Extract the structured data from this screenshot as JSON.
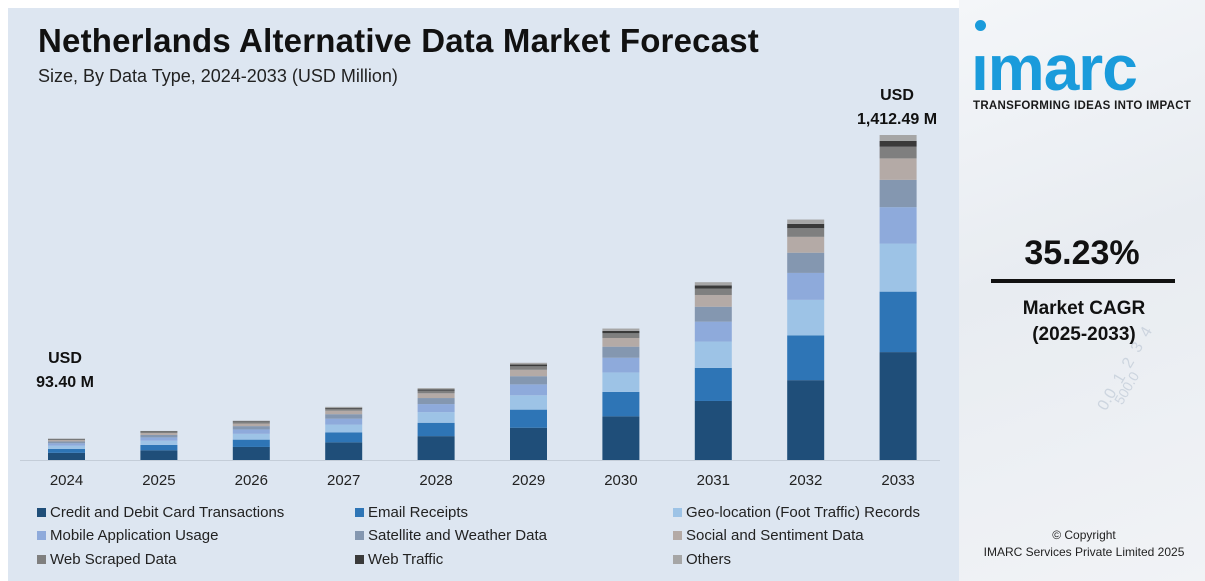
{
  "header": {
    "title": "Netherlands Alternative Data Market Forecast",
    "subtitle": "Size, By Data Type, 2024-2033 (USD Million)"
  },
  "annotations": {
    "start_line1": "USD",
    "start_line2": "93.40 M",
    "end_line1": "USD",
    "end_line2": "1,412.49 M"
  },
  "side": {
    "logo_text": "ımarc",
    "tagline": "TRANSFORMING IDEAS INTO IMPACT",
    "cagr_value": "35.23%",
    "cagr_label_line1": "Market CAGR",
    "cagr_label_line2": "(2025-2033)",
    "copyright_line1": "© Copyright",
    "copyright_line2": "IMARC Services Private Limited 2025",
    "brand_color": "#1a9bdb"
  },
  "chart_data": {
    "type": "bar",
    "stacked": true,
    "categories": [
      "2024",
      "2025",
      "2026",
      "2027",
      "2028",
      "2029",
      "2030",
      "2031",
      "2032",
      "2033"
    ],
    "totals": [
      93.4,
      126.3,
      170.8,
      231.0,
      312.4,
      422.5,
      571.4,
      772.8,
      1045.1,
      1412.49
    ],
    "series": [
      {
        "name": "Credit and Debit Card Transactions",
        "color": "#1f4e79",
        "shares": 0.332
      },
      {
        "name": "Email Receipts",
        "color": "#2e75b6",
        "shares": 0.186
      },
      {
        "name": "Geo-location (Foot Traffic) Records",
        "color": "#9dc3e6",
        "shares": 0.148
      },
      {
        "name": "Mobile Application Usage",
        "color": "#8eaadb",
        "shares": 0.112
      },
      {
        "name": "Satellite and Weather Data",
        "color": "#8497b0",
        "shares": 0.084
      },
      {
        "name": "Social and Sentiment Data",
        "color": "#b4aaa6",
        "shares": 0.066
      },
      {
        "name": "Web Scraped Data",
        "color": "#7f7f7f",
        "shares": 0.036
      },
      {
        "name": "Web Traffic",
        "color": "#3a3a3a",
        "shares": 0.018
      },
      {
        "name": "Others",
        "color": "#a6a6a6",
        "shares": 0.018
      }
    ],
    "xlabel": "",
    "ylabel": "",
    "grid": false,
    "legend_position": "bottom"
  }
}
